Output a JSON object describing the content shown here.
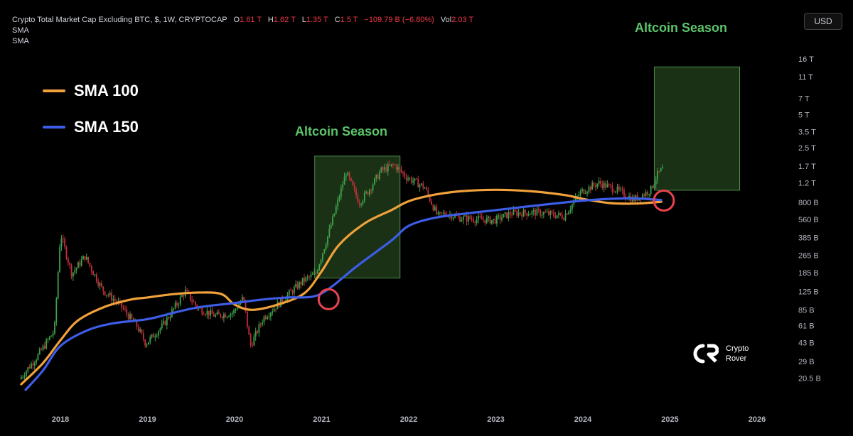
{
  "header": {
    "symbol": "Crypto Total Market Cap Excluding BTC, $, 1W, CRYPTOCAP",
    "o_key": "O",
    "o_val": "1.61 T",
    "h_key": "H",
    "h_val": "1.62 T",
    "l_key": "L",
    "l_val": "1.35 T",
    "c_key": "C",
    "c_val": "1.5 T",
    "change": "−109.79 B (−6.80%)",
    "vol_key": "Vol",
    "vol_val": "2.03 T",
    "indicator1": "SMA",
    "indicator2": "SMA"
  },
  "currency_button": "USD",
  "legend": [
    {
      "label": "SMA 100",
      "color": "#f0a13b"
    },
    {
      "label": "SMA 150",
      "color": "#3d5de6"
    }
  ],
  "annotations": {
    "season_label_1": "Altcoin Season",
    "season_label_2": "Altcoin Season"
  },
  "brand": {
    "line1": "Crypto",
    "line2": "Rover"
  },
  "colors": {
    "up": "#26a69a",
    "candle_up": "#3fa24a",
    "candle_down": "#c2303b",
    "sma100": "#f0a13b",
    "sma150": "#3d5de6",
    "season_fill": "#1f3a1a",
    "season_border": "#4d8a46",
    "circle": "#e8424f",
    "text_red": "#f23645"
  },
  "chart_data": {
    "type": "candlestick",
    "y_scale": "log",
    "y_unit": "USD",
    "x_ticks": [
      "2018",
      "2019",
      "2020",
      "2021",
      "2022",
      "2023",
      "2024",
      "2025",
      "2026"
    ],
    "y_ticks": [
      "16 T",
      "11 T",
      "7 T",
      "5 T",
      "3.5 T",
      "2.5 T",
      "1.7 T",
      "1.2 T",
      "800 B",
      "560 B",
      "385 B",
      "265 B",
      "185 B",
      "125 B",
      "85 B",
      "61 B",
      "43 B",
      "29 B",
      "20.5 B"
    ],
    "y_tick_values_billion": [
      16000,
      11000,
      7000,
      5000,
      3500,
      2500,
      1700,
      1200,
      800,
      560,
      385,
      265,
      185,
      125,
      85,
      61,
      43,
      29,
      20.5
    ],
    "price_anchors": {
      "x_year": [
        2017.55,
        2017.75,
        2017.95,
        2018.02,
        2018.15,
        2018.3,
        2018.5,
        2018.7,
        2018.9,
        2019.0,
        2019.2,
        2019.45,
        2019.6,
        2019.8,
        2020.0,
        2020.12,
        2020.2,
        2020.35,
        2020.6,
        2020.8,
        2020.95,
        2021.1,
        2021.3,
        2021.45,
        2021.55,
        2021.7,
        2021.85,
        2022.0,
        2022.2,
        2022.35,
        2022.45,
        2022.6,
        2022.85,
        2023.0,
        2023.2,
        2023.5,
        2023.8,
        2024.0,
        2024.2,
        2024.4,
        2024.6,
        2024.72,
        2024.8,
        2024.87,
        2024.93
      ],
      "y_billion": [
        20,
        32,
        55,
        420,
        180,
        260,
        130,
        95,
        60,
        42,
        62,
        125,
        88,
        75,
        80,
        110,
        40,
        72,
        110,
        155,
        180,
        420,
        1500,
        800,
        1000,
        1550,
        1750,
        1350,
        1100,
        600,
        640,
        580,
        560,
        550,
        640,
        650,
        600,
        1000,
        1200,
        1050,
        850,
        950,
        1050,
        1400,
        1600
      ]
    },
    "series": [
      {
        "name": "SMA 100",
        "x_year": [
          2017.55,
          2017.8,
          2018.0,
          2018.2,
          2018.5,
          2018.8,
          2019.0,
          2019.3,
          2019.6,
          2019.85,
          2020.0,
          2020.2,
          2020.5,
          2020.8,
          2021.0,
          2021.2,
          2021.5,
          2021.8,
          2022.0,
          2022.3,
          2022.6,
          2023.0,
          2023.4,
          2023.8,
          2024.0,
          2024.3,
          2024.6,
          2024.9
        ],
        "y_billion": [
          18,
          28,
          45,
          68,
          90,
          105,
          110,
          118,
          122,
          118,
          95,
          85,
          95,
          120,
          190,
          330,
          520,
          680,
          820,
          940,
          1010,
          1040,
          1010,
          930,
          860,
          790,
          780,
          810
        ]
      },
      {
        "name": "SMA 150",
        "x_year": [
          2017.6,
          2017.8,
          2018.0,
          2018.3,
          2018.6,
          2019.0,
          2019.3,
          2019.6,
          2020.0,
          2020.3,
          2020.6,
          2020.9,
          2021.1,
          2021.4,
          2021.8,
          2022.0,
          2022.3,
          2022.7,
          2023.0,
          2023.4,
          2023.8,
          2024.0,
          2024.3,
          2024.6,
          2024.9
        ],
        "y_billion": [
          16,
          24,
          40,
          55,
          64,
          70,
          80,
          90,
          98,
          105,
          110,
          112,
          135,
          210,
          360,
          490,
          580,
          640,
          680,
          740,
          800,
          830,
          860,
          870,
          840
        ]
      }
    ],
    "highlight_boxes": [
      {
        "label": "Altcoin Season",
        "x_start": 2020.92,
        "x_end": 2021.9,
        "y_low_billion": 165,
        "y_high_billion": 2100
      },
      {
        "label": "Altcoin Season",
        "x_start": 2024.82,
        "x_end": 2025.8,
        "y_low_billion": 1030,
        "y_high_billion": 13500
      }
    ],
    "crossover_circles": [
      {
        "x_year": 2021.08,
        "y_billion": 106
      },
      {
        "x_year": 2024.93,
        "y_billion": 830
      }
    ]
  }
}
